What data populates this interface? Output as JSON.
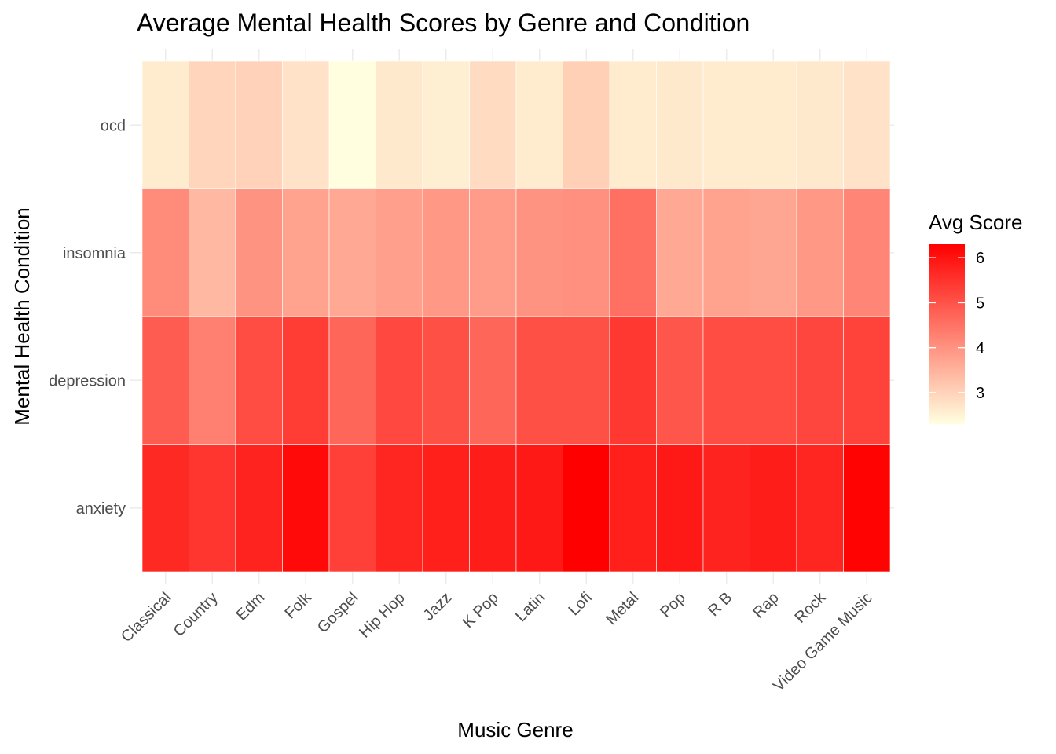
{
  "chart_data": {
    "type": "heatmap",
    "title": "Average Mental Health Scores by Genre and Condition",
    "xlabel": "Music Genre",
    "ylabel": "Mental Health Condition",
    "x_categories": [
      "Classical",
      "Country",
      "Edm",
      "Folk",
      "Gospel",
      "Hip Hop",
      "Jazz",
      "K Pop",
      "Latin",
      "Lofi",
      "Metal",
      "Pop",
      "R B",
      "Rap",
      "Rock",
      "Video Game Music"
    ],
    "y_categories": [
      "ocd",
      "insomnia",
      "depression",
      "anxiety"
    ],
    "values": [
      [
        2.6,
        2.95,
        3.0,
        2.75,
        2.3,
        2.65,
        2.55,
        2.85,
        2.6,
        3.05,
        2.6,
        2.65,
        2.6,
        2.6,
        2.65,
        2.75
      ],
      [
        4.1,
        3.4,
        4.0,
        3.75,
        3.65,
        3.8,
        3.9,
        3.85,
        4.0,
        4.05,
        4.55,
        3.65,
        3.75,
        3.7,
        3.9,
        4.2
      ],
      [
        4.85,
        4.3,
        5.1,
        5.35,
        4.7,
        5.15,
        5.05,
        4.7,
        5.05,
        5.05,
        5.4,
        4.95,
        5.1,
        5.1,
        5.2,
        5.25
      ],
      [
        5.65,
        5.45,
        5.75,
        6.15,
        5.3,
        5.7,
        5.8,
        5.85,
        5.9,
        6.3,
        5.8,
        5.9,
        5.75,
        5.85,
        5.7,
        6.25
      ]
    ],
    "legend": {
      "title": "Avg Score",
      "ticks": [
        3,
        4,
        5,
        6
      ],
      "min": 2.3,
      "max": 6.3,
      "low_color": "#FFFFE0",
      "high_color": "#FF0000",
      "placement": "right"
    },
    "grid": true
  }
}
